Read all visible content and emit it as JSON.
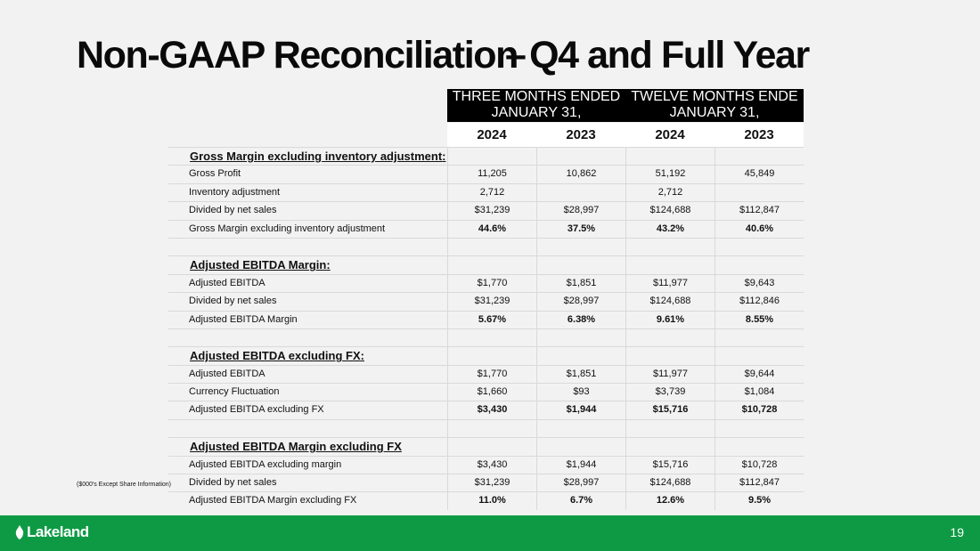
{
  "title": {
    "part1": "Non-GAAP Reconciliation",
    "dash": "–",
    "part2": "Q4 and Full Year"
  },
  "headers": {
    "three_months": {
      "line1": "THREE MONTHS ENDED",
      "line2": "JANUARY 31,"
    },
    "twelve_months": {
      "line1": "TWELVE MONTHS ENDE",
      "line2": "JANUARY 31,"
    },
    "years": [
      "2024",
      "2023",
      "2024",
      "2023"
    ]
  },
  "rows": [
    {
      "type": "sec",
      "label": "Gross Margin excluding inventory adjustment",
      "colon": ":",
      "values": [
        "",
        "",
        "",
        ""
      ]
    },
    {
      "type": "data",
      "label": "Gross Profit",
      "values": [
        "11,205",
        "10,862",
        "51,192",
        "45,849"
      ]
    },
    {
      "type": "data",
      "label": "Inventory adjustment",
      "values": [
        "2,712",
        "",
        "2,712",
        ""
      ]
    },
    {
      "type": "data",
      "label": "Divided by net sales",
      "values": [
        "$31,239",
        "$28,997",
        "$124,688",
        "$112,847"
      ]
    },
    {
      "type": "bold",
      "label": "Gross Margin excluding inventory adjustment",
      "values": [
        "44.6%",
        "37.5%",
        "43.2%",
        "40.6%"
      ]
    },
    {
      "type": "spacer",
      "label": "",
      "values": [
        "",
        "",
        "",
        ""
      ]
    },
    {
      "type": "sec",
      "label": "Adjusted EBITDA Margin",
      "colon": ":",
      "values": [
        "",
        "",
        "",
        ""
      ]
    },
    {
      "type": "data",
      "label": "Adjusted EBITDA",
      "values": [
        "$1,770",
        "$1,851",
        "$11,977",
        "$9,643"
      ]
    },
    {
      "type": "data",
      "label": "Divided by net sales",
      "values": [
        "$31,239",
        "$28,997",
        "$124,688",
        "$112,846"
      ]
    },
    {
      "type": "bold",
      "label": "Adjusted EBITDA Margin",
      "values": [
        "5.67%",
        "6.38%",
        "9.61%",
        "8.55%"
      ]
    },
    {
      "type": "spacer",
      "label": "",
      "values": [
        "",
        "",
        "",
        ""
      ]
    },
    {
      "type": "sec",
      "label": "Adjusted EBITDA excluding FX",
      "colon": ":",
      "values": [
        "",
        "",
        "",
        ""
      ]
    },
    {
      "type": "data",
      "label": "Adjusted EBITDA",
      "values": [
        "$1,770",
        "$1,851",
        "$11,977",
        "$9,644"
      ]
    },
    {
      "type": "data",
      "label": "Currency Fluctuation",
      "values": [
        "$1,660",
        "$93",
        "$3,739",
        "$1,084"
      ]
    },
    {
      "type": "bold",
      "label": "Adjusted EBITDA excluding FX",
      "values": [
        "$3,430",
        "$1,944",
        "$15,716",
        "$10,728"
      ]
    },
    {
      "type": "spacer",
      "label": "",
      "values": [
        "",
        "",
        "",
        ""
      ]
    },
    {
      "type": "sec",
      "label": "Adjusted EBITDA Margin excluding FX",
      "colon": "",
      "values": [
        "",
        "",
        "",
        ""
      ]
    },
    {
      "type": "data",
      "label": "Adjusted EBITDA excluding margin",
      "values": [
        "$3,430",
        "$1,944",
        "$15,716",
        "$10,728"
      ]
    },
    {
      "type": "data",
      "label": "Divided by net sales",
      "values": [
        "$31,239",
        "$28,997",
        "$124,688",
        "$112,847"
      ]
    },
    {
      "type": "bold",
      "label": "Adjusted EBITDA Margin excluding FX",
      "values": [
        "11.0%",
        "6.7%",
        "12.6%",
        "9.5%"
      ]
    }
  ],
  "footnote": "($000's Except Share Information)",
  "footer": {
    "logo": "Lakeland",
    "page_number": "19",
    "color": "#0e9a44"
  }
}
